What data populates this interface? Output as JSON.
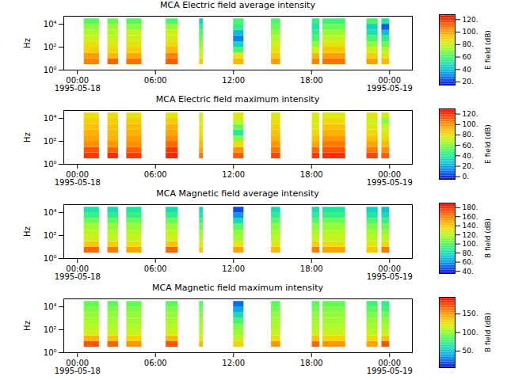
{
  "chart_data": [
    {
      "type": "heatmap",
      "title": "MCA  Electric field average intensity",
      "log": "y",
      "y_label": "Hz",
      "xlim": [
        "1995-05-17T22:57",
        "1995-05-19T01:45"
      ],
      "xticks": [
        {
          "value": "1995-05-18T00:00",
          "label": "00:00\n1995-05-18"
        },
        {
          "value": "1995-05-18T06:00",
          "label": "06:00"
        },
        {
          "value": "1995-05-18T12:00",
          "label": "12:00"
        },
        {
          "value": "1995-05-18T18:00",
          "label": "18:00"
        },
        {
          "value": "1995-05-19T00:00",
          "label": "00:00\n1995-05-19"
        }
      ],
      "ylim": [
        1,
        50000
      ],
      "yticks": [
        {
          "value": 1,
          "label": "10⁰"
        },
        {
          "value": 100,
          "label": "10²"
        },
        {
          "value": 10000,
          "label": "10⁴"
        }
      ],
      "x_bins": [
        [
          "1995-05-18T00:31",
          "1995-05-18T01:41"
        ],
        [
          "1995-05-18T02:20",
          "1995-05-18T03:09"
        ],
        [
          "1995-05-18T03:47",
          "1995-05-18T04:57"
        ],
        [
          "1995-05-18T06:49",
          "1995-05-18T07:45"
        ],
        [
          "1995-05-18T09:23",
          "1995-05-18T09:40"
        ],
        [
          "1995-05-18T12:00",
          "1995-05-18T12:48"
        ],
        [
          "1995-05-18T14:55",
          "1995-05-18T15:37"
        ],
        [
          "1995-05-18T18:03",
          "1995-05-18T18:38"
        ],
        [
          "1995-05-18T18:52",
          "1995-05-18T20:37"
        ],
        [
          "1995-05-18T22:15",
          "1995-05-18T23:07"
        ],
        [
          "1995-05-18T23:24",
          "1995-05-19T00:00"
        ]
      ],
      "y_bins": [
        3,
        10,
        30,
        100,
        300,
        1000,
        3000,
        10000,
        30000
      ],
      "cells": [
        [
          105,
          100,
          90,
          85,
          80,
          75,
          70,
          62
        ],
        [
          110,
          95,
          88,
          82,
          78,
          75,
          72,
          65
        ],
        [
          108,
          98,
          90,
          85,
          80,
          78,
          70,
          62
        ],
        [
          112,
          105,
          95,
          88,
          82,
          80,
          72,
          60
        ],
        [
          90,
          80,
          75,
          70,
          65,
          60,
          55,
          45
        ],
        [
          95,
          85,
          60,
          45,
          30,
          40,
          55,
          60
        ],
        [
          100,
          92,
          85,
          80,
          75,
          70,
          65,
          60
        ],
        [
          105,
          95,
          80,
          70,
          60,
          55,
          50,
          55
        ],
        [
          108,
          100,
          92,
          85,
          78,
          72,
          65,
          58
        ],
        [
          100,
          90,
          80,
          70,
          60,
          50,
          45,
          60
        ],
        [
          95,
          85,
          75,
          65,
          55,
          40,
          25,
          50
        ]
      ],
      "colorbar": {
        "label": "E field (dB)",
        "range": [
          15,
          128
        ],
        "ticks": [
          {
            "value": 20,
            "label": "20."
          },
          {
            "value": 40,
            "label": "40"
          },
          {
            "value": 60,
            "label": "60"
          },
          {
            "value": 80,
            "label": "80."
          },
          {
            "value": 100,
            "label": "100."
          },
          {
            "value": 120,
            "label": "120."
          }
        ]
      }
    },
    {
      "type": "heatmap",
      "title": "MCA  Electric field maximum intensity",
      "log": "y",
      "y_label": "Hz",
      "xlim": [
        "1995-05-17T22:57",
        "1995-05-19T01:45"
      ],
      "xticks": [
        {
          "value": "1995-05-18T00:00",
          "label": "00:00\n1995-05-18"
        },
        {
          "value": "1995-05-18T06:00",
          "label": "06:00"
        },
        {
          "value": "1995-05-18T12:00",
          "label": "12:00"
        },
        {
          "value": "1995-05-18T18:00",
          "label": "18:00"
        },
        {
          "value": "1995-05-19T00:00",
          "label": "00:00\n1995-05-19"
        }
      ],
      "ylim": [
        1,
        50000
      ],
      "yticks": [
        {
          "value": 1,
          "label": "10⁰"
        },
        {
          "value": 100,
          "label": "10²"
        },
        {
          "value": 10000,
          "label": "10⁴"
        }
      ],
      "x_bins": [
        [
          "1995-05-18T00:31",
          "1995-05-18T01:41"
        ],
        [
          "1995-05-18T02:20",
          "1995-05-18T03:09"
        ],
        [
          "1995-05-18T03:47",
          "1995-05-18T04:57"
        ],
        [
          "1995-05-18T06:49",
          "1995-05-18T07:45"
        ],
        [
          "1995-05-18T09:23",
          "1995-05-18T09:40"
        ],
        [
          "1995-05-18T12:00",
          "1995-05-18T12:48"
        ],
        [
          "1995-05-18T14:55",
          "1995-05-18T15:37"
        ],
        [
          "1995-05-18T18:03",
          "1995-05-18T18:38"
        ],
        [
          "1995-05-18T18:52",
          "1995-05-18T20:37"
        ],
        [
          "1995-05-18T22:15",
          "1995-05-18T23:07"
        ],
        [
          "1995-05-18T23:24",
          "1995-05-19T00:00"
        ]
      ],
      "y_bins": [
        3,
        10,
        30,
        100,
        300,
        1000,
        3000,
        10000,
        30000
      ],
      "cells": [
        [
          118,
          112,
          100,
          95,
          92,
          88,
          85,
          80
        ],
        [
          120,
          108,
          98,
          92,
          90,
          88,
          85,
          80
        ],
        [
          118,
          110,
          100,
          96,
          92,
          90,
          86,
          78
        ],
        [
          122,
          118,
          108,
          100,
          95,
          92,
          86,
          78
        ],
        [
          105,
          95,
          90,
          85,
          80,
          78,
          75,
          70
        ],
        [
          110,
          98,
          80,
          60,
          40,
          55,
          70,
          78
        ],
        [
          115,
          105,
          98,
          92,
          88,
          85,
          80,
          76
        ],
        [
          118,
          108,
          95,
          88,
          82,
          78,
          75,
          76
        ],
        [
          120,
          112,
          104,
          98,
          92,
          88,
          82,
          76
        ],
        [
          115,
          104,
          95,
          88,
          82,
          78,
          72,
          78
        ],
        [
          110,
          100,
          90,
          82,
          76,
          70,
          60,
          72
        ]
      ],
      "colorbar": {
        "label": "E field (dB)",
        "range": [
          -5,
          130
        ],
        "ticks": [
          {
            "value": 0,
            "label": "0."
          },
          {
            "value": 20,
            "label": "20."
          },
          {
            "value": 40,
            "label": "40."
          },
          {
            "value": 60,
            "label": "60."
          },
          {
            "value": 80,
            "label": "80."
          },
          {
            "value": 100,
            "label": "100."
          },
          {
            "value": 120,
            "label": "120."
          }
        ]
      }
    },
    {
      "type": "heatmap",
      "title": "MCA  Magnetic field average intensity",
      "log": "y",
      "y_label": "Hz",
      "xlim": [
        "1995-05-17T22:57",
        "1995-05-19T01:45"
      ],
      "xticks": [
        {
          "value": "1995-05-18T00:00",
          "label": "00:00\n1995-05-18"
        },
        {
          "value": "1995-05-18T06:00",
          "label": "06:00"
        },
        {
          "value": "1995-05-18T12:00",
          "label": "12:00"
        },
        {
          "value": "1995-05-18T18:00",
          "label": "18:00"
        },
        {
          "value": "1995-05-19T00:00",
          "label": "00:00\n1995-05-19"
        }
      ],
      "ylim": [
        1,
        50000
      ],
      "yticks": [
        {
          "value": 1,
          "label": "10⁰"
        },
        {
          "value": 100,
          "label": "10²"
        },
        {
          "value": 10000,
          "label": "10⁴"
        }
      ],
      "x_bins": [
        [
          "1995-05-18T00:31",
          "1995-05-18T01:41"
        ],
        [
          "1995-05-18T02:20",
          "1995-05-18T03:09"
        ],
        [
          "1995-05-18T03:47",
          "1995-05-18T04:57"
        ],
        [
          "1995-05-18T06:49",
          "1995-05-18T07:45"
        ],
        [
          "1995-05-18T09:23",
          "1995-05-18T09:40"
        ],
        [
          "1995-05-18T12:00",
          "1995-05-18T12:48"
        ],
        [
          "1995-05-18T14:55",
          "1995-05-18T15:37"
        ],
        [
          "1995-05-18T18:03",
          "1995-05-18T18:38"
        ],
        [
          "1995-05-18T18:52",
          "1995-05-18T20:37"
        ],
        [
          "1995-05-18T22:15",
          "1995-05-18T23:07"
        ],
        [
          "1995-05-18T23:24",
          "1995-05-19T00:00"
        ]
      ],
      "y_bins": [
        3,
        10,
        30,
        100,
        300,
        1000,
        3000,
        10000,
        30000
      ],
      "cells": [
        [
          165,
          140,
          125,
          120,
          115,
          105,
          92,
          82
        ],
        [
          160,
          138,
          122,
          118,
          112,
          102,
          90,
          80
        ],
        [
          150,
          132,
          122,
          118,
          112,
          104,
          92,
          84
        ],
        [
          165,
          142,
          125,
          120,
          114,
          104,
          90,
          80
        ],
        [
          140,
          125,
          118,
          112,
          105,
          95,
          85,
          78
        ],
        [
          150,
          130,
          115,
          110,
          100,
          80,
          60,
          45
        ],
        [
          145,
          128,
          120,
          115,
          110,
          100,
          88,
          80
        ],
        [
          160,
          138,
          122,
          116,
          110,
          100,
          88,
          80
        ],
        [
          150,
          132,
          122,
          118,
          112,
          104,
          92,
          84
        ],
        [
          140,
          128,
          120,
          115,
          108,
          98,
          85,
          76
        ],
        [
          160,
          135,
          120,
          112,
          105,
          92,
          80,
          70
        ]
      ],
      "colorbar": {
        "label": "B field (dB)",
        "range": [
          35,
          190
        ],
        "ticks": [
          {
            "value": 40,
            "label": "40."
          },
          {
            "value": 60,
            "label": "60."
          },
          {
            "value": 80,
            "label": "80."
          },
          {
            "value": 100,
            "label": "100."
          },
          {
            "value": 120,
            "label": "120."
          },
          {
            "value": 140,
            "label": "140."
          },
          {
            "value": 160,
            "label": "160."
          },
          {
            "value": 180,
            "label": "180."
          }
        ]
      }
    },
    {
      "type": "heatmap",
      "title": "MCA  Magnetic field maximum intensity",
      "log": "y",
      "y_label": "Hz",
      "xlim": [
        "1995-05-17T22:57",
        "1995-05-19T01:45"
      ],
      "xticks": [
        {
          "value": "1995-05-18T00:00",
          "label": "00:00\n1995-05-18"
        },
        {
          "value": "1995-05-18T06:00",
          "label": "06:00"
        },
        {
          "value": "1995-05-18T12:00",
          "label": "12:00"
        },
        {
          "value": "1995-05-18T18:00",
          "label": "18:00"
        },
        {
          "value": "1995-05-19T00:00",
          "label": "00:00\n1995-05-19"
        }
      ],
      "ylim": [
        1,
        50000
      ],
      "yticks": [
        {
          "value": 1,
          "label": "10⁰"
        },
        {
          "value": 100,
          "label": "10²"
        },
        {
          "value": 10000,
          "label": "10⁴"
        }
      ],
      "x_bins": [
        [
          "1995-05-18T00:31",
          "1995-05-18T01:41"
        ],
        [
          "1995-05-18T02:20",
          "1995-05-18T03:09"
        ],
        [
          "1995-05-18T03:47",
          "1995-05-18T04:57"
        ],
        [
          "1995-05-18T06:49",
          "1995-05-18T07:45"
        ],
        [
          "1995-05-18T09:23",
          "1995-05-18T09:40"
        ],
        [
          "1995-05-18T12:00",
          "1995-05-18T12:48"
        ],
        [
          "1995-05-18T14:55",
          "1995-05-18T15:37"
        ],
        [
          "1995-05-18T18:03",
          "1995-05-18T18:38"
        ],
        [
          "1995-05-18T18:52",
          "1995-05-18T20:37"
        ],
        [
          "1995-05-18T22:15",
          "1995-05-18T23:07"
        ],
        [
          "1995-05-18T23:24",
          "1995-05-19T00:00"
        ]
      ],
      "y_bins": [
        3,
        10,
        30,
        100,
        300,
        1000,
        3000,
        10000,
        30000
      ],
      "cells": [
        [
          170,
          140,
          115,
          108,
          104,
          100,
          95,
          88
        ],
        [
          165,
          135,
          112,
          106,
          102,
          98,
          94,
          86
        ],
        [
          150,
          128,
          112,
          106,
          102,
          100,
          95,
          88
        ],
        [
          170,
          140,
          115,
          108,
          104,
          100,
          94,
          86
        ],
        [
          140,
          120,
          108,
          104,
          100,
          96,
          90,
          84
        ],
        [
          130,
          110,
          100,
          95,
          80,
          60,
          40,
          25
        ],
        [
          150,
          125,
          110,
          105,
          102,
          98,
          92,
          86
        ],
        [
          165,
          135,
          112,
          106,
          102,
          98,
          92,
          86
        ],
        [
          150,
          128,
          112,
          106,
          102,
          100,
          94,
          88
        ],
        [
          145,
          125,
          110,
          104,
          100,
          94,
          86,
          78
        ],
        [
          170,
          135,
          112,
          104,
          98,
          90,
          80,
          72
        ]
      ],
      "colorbar": {
        "label": "B field (dB)",
        "range": [
          5,
          195
        ],
        "ticks": [
          {
            "value": 50,
            "label": "50."
          },
          {
            "value": 100,
            "label": "100."
          },
          {
            "value": 150,
            "label": "150."
          }
        ]
      }
    }
  ]
}
